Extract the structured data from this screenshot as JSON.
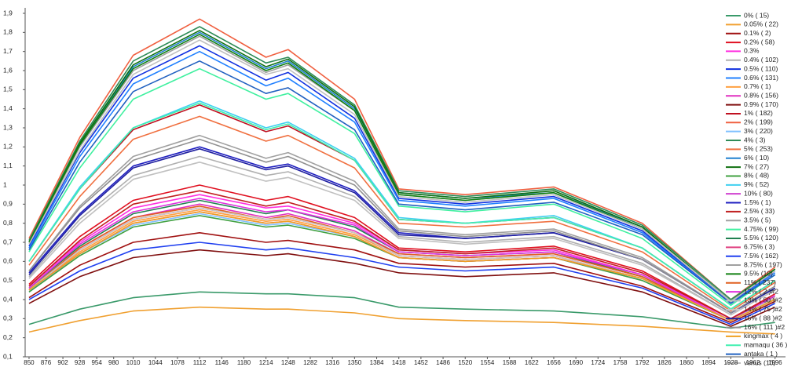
{
  "chart_data": {
    "type": "line",
    "legend": "right",
    "x": [
      850,
      928,
      1010,
      1112,
      1214,
      1248,
      1350,
      1418,
      1520,
      1656,
      1792,
      1928,
      1996
    ],
    "xlim": [
      844,
      2012
    ],
    "ylim": [
      0.1,
      1.9
    ],
    "xticks": [
      850,
      876,
      902,
      928,
      954,
      980,
      1010,
      1044,
      1078,
      1112,
      1146,
      1180,
      1214,
      1248,
      1282,
      1316,
      1350,
      1384,
      1418,
      1452,
      1486,
      1520,
      1554,
      1588,
      1622,
      1656,
      1690,
      1724,
      1758,
      1792,
      1826,
      1860,
      1894,
      1928,
      1962,
      1996
    ],
    "yticks": [
      {
        "value": 0.1,
        "label": "0,1"
      },
      {
        "value": 0.2,
        "label": "0,2"
      },
      {
        "value": 0.3,
        "label": "0,3"
      },
      {
        "value": 0.4,
        "label": "0,4"
      },
      {
        "value": 0.5,
        "label": "0,5"
      },
      {
        "value": 0.6,
        "label": "0,6"
      },
      {
        "value": 0.7,
        "label": "0,7"
      },
      {
        "value": 0.8,
        "label": "0,8"
      },
      {
        "value": 0.9,
        "label": "0,9"
      },
      1,
      {
        "value": 1.1,
        "label": "1,1"
      },
      {
        "value": 1.2,
        "label": "1,2"
      },
      {
        "value": 1.3,
        "label": "1,3"
      },
      {
        "value": 1.4,
        "label": "1,4"
      },
      {
        "value": 1.5,
        "label": "1,5"
      },
      {
        "value": 1.6,
        "label": "1,6"
      },
      {
        "value": 1.7,
        "label": "1,7"
      },
      {
        "value": 1.8,
        "label": "1,8"
      },
      {
        "value": 1.9,
        "label": "1,9"
      }
    ],
    "series": [
      {
        "name": "0% ( 15)",
        "color": "#3a9a6a",
        "values": [
          0.27,
          0.35,
          0.41,
          0.44,
          0.43,
          0.43,
          0.41,
          0.36,
          0.35,
          0.34,
          0.31,
          0.25,
          0.28
        ]
      },
      {
        "name": "0.05% ( 22)",
        "color": "#f0a030",
        "values": [
          0.23,
          0.29,
          0.34,
          0.36,
          0.35,
          0.35,
          0.33,
          0.3,
          0.29,
          0.28,
          0.26,
          0.23,
          0.22
        ]
      },
      {
        "name": "0.1% ( 2)",
        "color": "#a01010",
        "values": [
          0.41,
          0.58,
          0.7,
          0.75,
          0.7,
          0.71,
          0.66,
          0.59,
          0.57,
          0.59,
          0.47,
          0.28,
          0.39
        ]
      },
      {
        "name": "0.2% ( 58)",
        "color": "#e01020",
        "values": [
          0.48,
          0.73,
          0.92,
          1.0,
          0.92,
          0.94,
          0.83,
          0.67,
          0.65,
          0.68,
          0.55,
          0.3,
          0.43
        ]
      },
      {
        "name": "0.3%",
        "color": "#ff30e0",
        "values": [
          0.47,
          0.7,
          0.88,
          0.95,
          0.88,
          0.89,
          0.8,
          0.66,
          0.64,
          0.66,
          0.53,
          0.3,
          0.42
        ]
      },
      {
        "name": "0.4% ( 102)",
        "color": "#b0b0b0",
        "values": [
          0.52,
          0.82,
          1.05,
          1.15,
          1.05,
          1.07,
          0.94,
          0.73,
          0.7,
          0.73,
          0.59,
          0.32,
          0.45
        ]
      },
      {
        "name": "0.5% ( 110)",
        "color": "#1030e0",
        "values": [
          0.68,
          1.17,
          1.56,
          1.73,
          1.55,
          1.59,
          1.35,
          0.93,
          0.9,
          0.94,
          0.76,
          0.38,
          0.55
        ]
      },
      {
        "name": "0.6% ( 131)",
        "color": "#2080ff",
        "values": [
          0.67,
          1.15,
          1.53,
          1.7,
          1.52,
          1.56,
          1.33,
          0.92,
          0.89,
          0.93,
          0.75,
          0.38,
          0.54
        ]
      },
      {
        "name": "0.7% ( 1)",
        "color": "#ffa040",
        "values": [
          0.45,
          0.65,
          0.81,
          0.87,
          0.81,
          0.82,
          0.74,
          0.63,
          0.61,
          0.63,
          0.51,
          0.29,
          0.41
        ]
      },
      {
        "name": "0.8% ( 156)",
        "color": "#e030c0",
        "values": [
          0.45,
          0.67,
          0.83,
          0.9,
          0.83,
          0.85,
          0.76,
          0.64,
          0.62,
          0.64,
          0.52,
          0.29,
          0.41
        ]
      },
      {
        "name": "0.9% ( 170)",
        "color": "#801010",
        "values": [
          0.38,
          0.52,
          0.62,
          0.66,
          0.63,
          0.64,
          0.59,
          0.54,
          0.52,
          0.54,
          0.44,
          0.26,
          0.36
        ]
      },
      {
        "name": "1% ( 182)",
        "color": "#c01020",
        "values": [
          0.6,
          0.98,
          1.29,
          1.42,
          1.28,
          1.31,
          1.13,
          0.82,
          0.8,
          0.83,
          0.67,
          0.35,
          0.5
        ]
      },
      {
        "name": "2% ( 199)",
        "color": "#f06040",
        "values": [
          0.72,
          1.25,
          1.68,
          1.87,
          1.67,
          1.71,
          1.45,
          0.98,
          0.95,
          0.99,
          0.8,
          0.4,
          0.57
        ]
      },
      {
        "name": "3% ( 220)",
        "color": "#80c0ff",
        "values": [
          0.44,
          0.64,
          0.79,
          0.85,
          0.79,
          0.8,
          0.73,
          0.62,
          0.6,
          0.62,
          0.5,
          0.29,
          0.4
        ]
      },
      {
        "name": "4% ( 3)",
        "color": "#2e8b57",
        "values": [
          0.71,
          1.23,
          1.65,
          1.83,
          1.64,
          1.67,
          1.42,
          0.97,
          0.94,
          0.98,
          0.79,
          0.4,
          0.56
        ]
      },
      {
        "name": "5% ( 253)",
        "color": "#f07040",
        "values": [
          0.58,
          0.94,
          1.24,
          1.36,
          1.23,
          1.26,
          1.09,
          0.8,
          0.78,
          0.81,
          0.65,
          0.34,
          0.49
        ]
      },
      {
        "name": "6% ( 10)",
        "color": "#2080d0",
        "values": [
          0.7,
          1.21,
          1.62,
          1.8,
          1.61,
          1.65,
          1.4,
          0.96,
          0.93,
          0.96,
          0.78,
          0.39,
          0.56
        ]
      },
      {
        "name": "7% ( 27)",
        "color": "#107010",
        "values": [
          0.7,
          1.22,
          1.63,
          1.81,
          1.62,
          1.66,
          1.41,
          0.96,
          0.93,
          0.97,
          0.78,
          0.39,
          0.56
        ]
      },
      {
        "name": "8% ( 48)",
        "color": "#40a040",
        "values": [
          0.44,
          0.63,
          0.78,
          0.84,
          0.78,
          0.79,
          0.72,
          0.62,
          0.6,
          0.62,
          0.5,
          0.29,
          0.4
        ]
      },
      {
        "name": "9% ( 52)",
        "color": "#40d0f0",
        "values": [
          0.6,
          0.99,
          1.3,
          1.44,
          1.3,
          1.33,
          1.14,
          0.83,
          0.8,
          0.84,
          0.67,
          0.35,
          0.5
        ]
      },
      {
        "name": "10% ( 80)",
        "color": "#d040d0",
        "values": [
          0.45,
          0.64,
          0.8,
          0.86,
          0.8,
          0.81,
          0.73,
          0.62,
          0.6,
          0.62,
          0.51,
          0.29,
          0.4
        ]
      },
      {
        "name": "1.5% ( 1)",
        "color": "#2020c0",
        "values": [
          0.54,
          0.85,
          1.1,
          1.2,
          1.09,
          1.11,
          0.97,
          0.75,
          0.72,
          0.75,
          0.61,
          0.33,
          0.46
        ]
      },
      {
        "name": "2.5% ( 33)",
        "color": "#c02020",
        "values": [
          0.47,
          0.71,
          0.9,
          0.97,
          0.89,
          0.91,
          0.81,
          0.66,
          0.64,
          0.67,
          0.54,
          0.3,
          0.42
        ]
      },
      {
        "name": "3.5% ( 5)",
        "color": "#a0a0a0",
        "values": [
          0.55,
          0.89,
          1.15,
          1.26,
          1.14,
          1.17,
          1.02,
          0.77,
          0.74,
          0.77,
          0.62,
          0.33,
          0.47
        ]
      },
      {
        "name": "4.75% ( 99)",
        "color": "#40f0a0",
        "values": [
          0.65,
          1.09,
          1.45,
          1.61,
          1.45,
          1.48,
          1.27,
          0.89,
          0.86,
          0.9,
          0.72,
          0.37,
          0.53
        ]
      },
      {
        "name": "5.5% ( 120)",
        "color": "#208050",
        "values": [
          0.46,
          0.68,
          0.85,
          0.92,
          0.85,
          0.87,
          0.78,
          0.65,
          0.63,
          0.65,
          0.52,
          0.29,
          0.42
        ]
      },
      {
        "name": "6.75% ( 3)",
        "color": "#e04080",
        "values": [
          0.45,
          0.66,
          0.82,
          0.88,
          0.82,
          0.83,
          0.75,
          0.63,
          0.61,
          0.63,
          0.51,
          0.29,
          0.41
        ]
      },
      {
        "name": "7.5% ( 162)",
        "color": "#2040f0",
        "values": [
          0.4,
          0.55,
          0.66,
          0.7,
          0.66,
          0.67,
          0.62,
          0.57,
          0.55,
          0.57,
          0.46,
          0.27,
          0.38
        ]
      },
      {
        "name": "8.75% ( 197)",
        "color": "#a0a0a0",
        "values": [
          0.7,
          1.2,
          1.6,
          1.78,
          1.59,
          1.63,
          1.39,
          0.95,
          0.92,
          0.96,
          0.77,
          0.39,
          0.56
        ]
      },
      {
        "name": "9.5% (10)",
        "color": "#108010",
        "values": [
          0.7,
          1.21,
          1.61,
          1.79,
          1.6,
          1.64,
          1.39,
          0.95,
          0.92,
          0.96,
          0.77,
          0.39,
          0.56
        ]
      },
      {
        "name": "11% ( 237)",
        "color": "#e06020",
        "values": [
          0.45,
          0.67,
          0.83,
          0.89,
          0.82,
          0.84,
          0.75,
          0.64,
          0.62,
          0.64,
          0.52,
          0.29,
          0.41
        ]
      },
      {
        "name": "12% ( 2 )#2",
        "color": "#e030e0",
        "values": [
          0.46,
          0.69,
          0.86,
          0.93,
          0.86,
          0.87,
          0.79,
          0.65,
          0.63,
          0.65,
          0.53,
          0.29,
          0.42
        ]
      },
      {
        "name": "13% ( 50 )#2",
        "color": "#c0c0c0",
        "values": [
          0.51,
          0.8,
          1.03,
          1.12,
          1.02,
          1.04,
          0.92,
          0.72,
          0.69,
          0.72,
          0.58,
          0.32,
          0.45
        ]
      },
      {
        "name": "14% ( 75 )#2",
        "color": "#c8c8c8",
        "values": [
          0.45,
          0.66,
          0.82,
          0.88,
          0.82,
          0.83,
          0.75,
          0.63,
          0.61,
          0.63,
          0.51,
          0.29,
          0.41
        ]
      },
      {
        "name": "15% ( 88 )#2",
        "color": "#2020a0",
        "values": [
          0.53,
          0.84,
          1.09,
          1.19,
          1.08,
          1.1,
          0.96,
          0.74,
          0.72,
          0.75,
          0.61,
          0.33,
          0.46
        ]
      },
      {
        "name": "16% ( 111 )#2",
        "color": "#909090",
        "values": [
          0.55,
          0.88,
          1.13,
          1.24,
          1.12,
          1.15,
          1.0,
          0.76,
          0.73,
          0.76,
          0.61,
          0.33,
          0.47
        ]
      },
      {
        "name": "kingmax ( 4 )",
        "color": "#f0a020",
        "values": [
          0.45,
          0.64,
          0.8,
          0.86,
          0.8,
          0.81,
          0.73,
          0.62,
          0.6,
          0.62,
          0.51,
          0.29,
          0.4
        ]
      },
      {
        "name": "mamaqu ( 36 )",
        "color": "#40f0b0",
        "values": [
          0.6,
          0.98,
          1.3,
          1.43,
          1.29,
          1.32,
          1.13,
          0.82,
          0.8,
          0.83,
          0.67,
          0.35,
          0.5
        ]
      },
      {
        "name": "antaka ( 1 )",
        "color": "#2060c0",
        "values": [
          0.66,
          1.12,
          1.49,
          1.65,
          1.48,
          1.51,
          1.29,
          0.9,
          0.87,
          0.91,
          0.74,
          0.38,
          0.53
        ]
      },
      {
        "name": "venus (10)",
        "color": "#c0c0c0",
        "values": [
          0.69,
          1.18,
          1.58,
          1.76,
          1.58,
          1.61,
          1.37,
          0.94,
          0.91,
          0.95,
          0.77,
          0.39,
          0.55
        ]
      }
    ]
  }
}
